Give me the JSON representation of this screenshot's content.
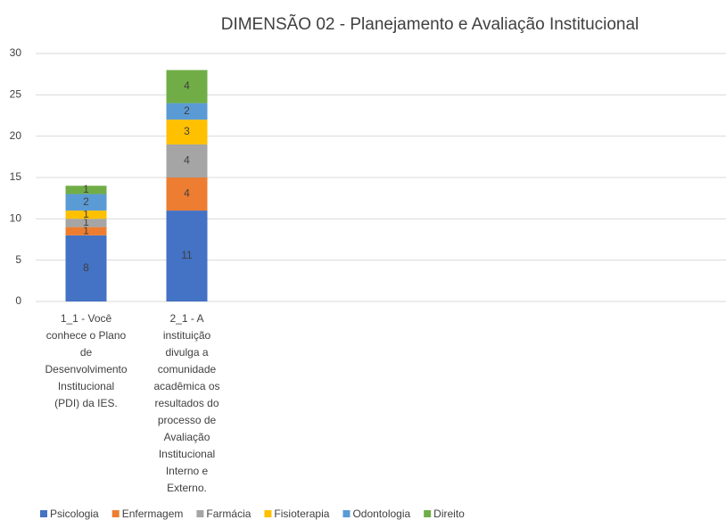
{
  "chart_data": {
    "type": "stacked_bar",
    "title": "DIMENSÃO 02  - Planejamento e Avaliação Institucional",
    "categories": [
      "1_1 - Você conhece o Plano de Desenvolvimento Institucional (PDI) da IES.",
      "2_1 - A instituição divulga a comunidade acadêmica os resultados do processo de Avaliação Institucional Interno e Externo."
    ],
    "series": [
      {
        "name": "Psicologia",
        "color": "#4472c4",
        "values": [
          8,
          11
        ]
      },
      {
        "name": "Enfermagem",
        "color": "#ed7d31",
        "values": [
          1,
          4
        ]
      },
      {
        "name": "Farmácia",
        "color": "#a5a5a5",
        "values": [
          1,
          4
        ]
      },
      {
        "name": "Fisioterapia",
        "color": "#ffc000",
        "values": [
          1,
          3
        ]
      },
      {
        "name": "Odontologia",
        "color": "#5b9bd5",
        "values": [
          2,
          2
        ]
      },
      {
        "name": "Direito",
        "color": "#70ad47",
        "values": [
          1,
          4
        ]
      }
    ],
    "ylim": [
      0,
      30
    ],
    "yticks": [
      0,
      5,
      10,
      15,
      20,
      25,
      30
    ],
    "grid": true,
    "legend": "bottom"
  }
}
